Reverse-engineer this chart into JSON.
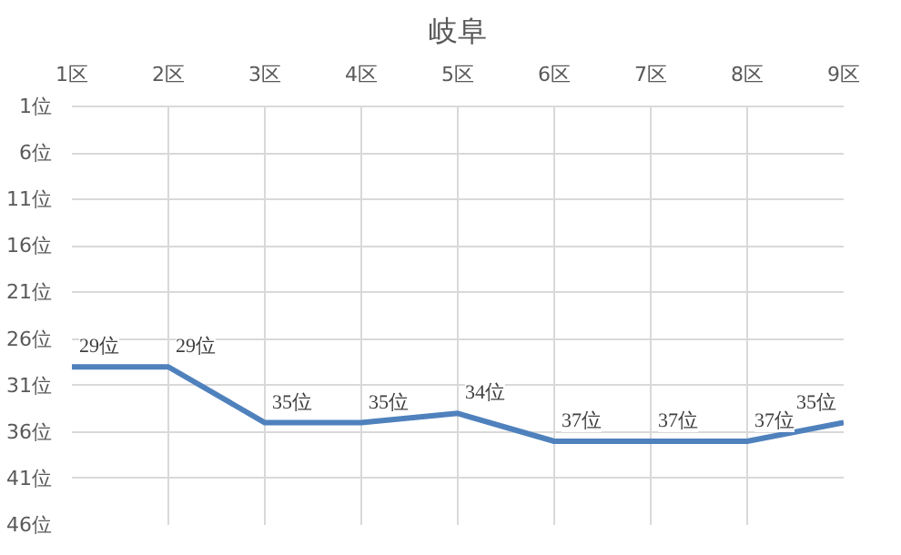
{
  "chart_data": {
    "type": "line",
    "title": "岐阜",
    "categories": [
      "1区",
      "2区",
      "3区",
      "4区",
      "5区",
      "6区",
      "7区",
      "8区",
      "9区"
    ],
    "series": [
      {
        "color": "#4f81bd",
        "values": [
          29,
          29,
          35,
          35,
          34,
          37,
          37,
          37,
          35
        ],
        "value_labels": [
          "29位",
          "29位",
          "35位",
          "35位",
          "34位",
          "37位",
          "37位",
          "37位",
          "35位"
        ]
      }
    ],
    "ylim": [
      46,
      1
    ],
    "yticks": [
      {
        "value": 1,
        "label": "1位"
      },
      {
        "value": 6,
        "label": "6位"
      },
      {
        "value": 11,
        "label": "11位"
      },
      {
        "value": 16,
        "label": "16位"
      },
      {
        "value": 21,
        "label": "21位"
      },
      {
        "value": 26,
        "label": "26位"
      },
      {
        "value": 31,
        "label": "31位"
      },
      {
        "value": 36,
        "label": "36位"
      },
      {
        "value": 41,
        "label": "41位"
      },
      {
        "value": 46,
        "label": "46位"
      }
    ],
    "grid": true,
    "marker": "none",
    "line_style": "solid"
  }
}
